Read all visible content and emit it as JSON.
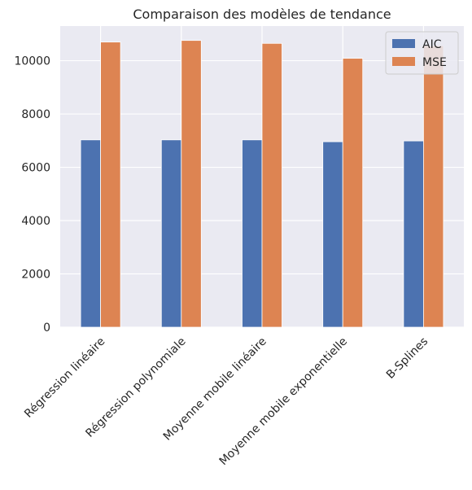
{
  "chart_data": {
    "type": "bar",
    "title": "Comparaison des modèles de tendance",
    "xlabel": "",
    "ylabel": "",
    "categories": [
      "Régression linéaire",
      "Régression polynomiale",
      "Moyenne mobile linéaire",
      "Moyenne mobile exponentielle",
      "B-Splines"
    ],
    "series": [
      {
        "name": "AIC",
        "color": "#4c72b0",
        "values": [
          7030,
          7030,
          7030,
          6960,
          6990
        ]
      },
      {
        "name": "MSE",
        "color": "#dd8452",
        "values": [
          10700,
          10760,
          10650,
          10090,
          10560
        ]
      }
    ],
    "ylim": [
      0,
      11300
    ],
    "yticks": [
      0,
      2000,
      4000,
      6000,
      8000,
      10000
    ],
    "grid": true,
    "legend_position": "top-right",
    "background": "#eaeaf2"
  }
}
